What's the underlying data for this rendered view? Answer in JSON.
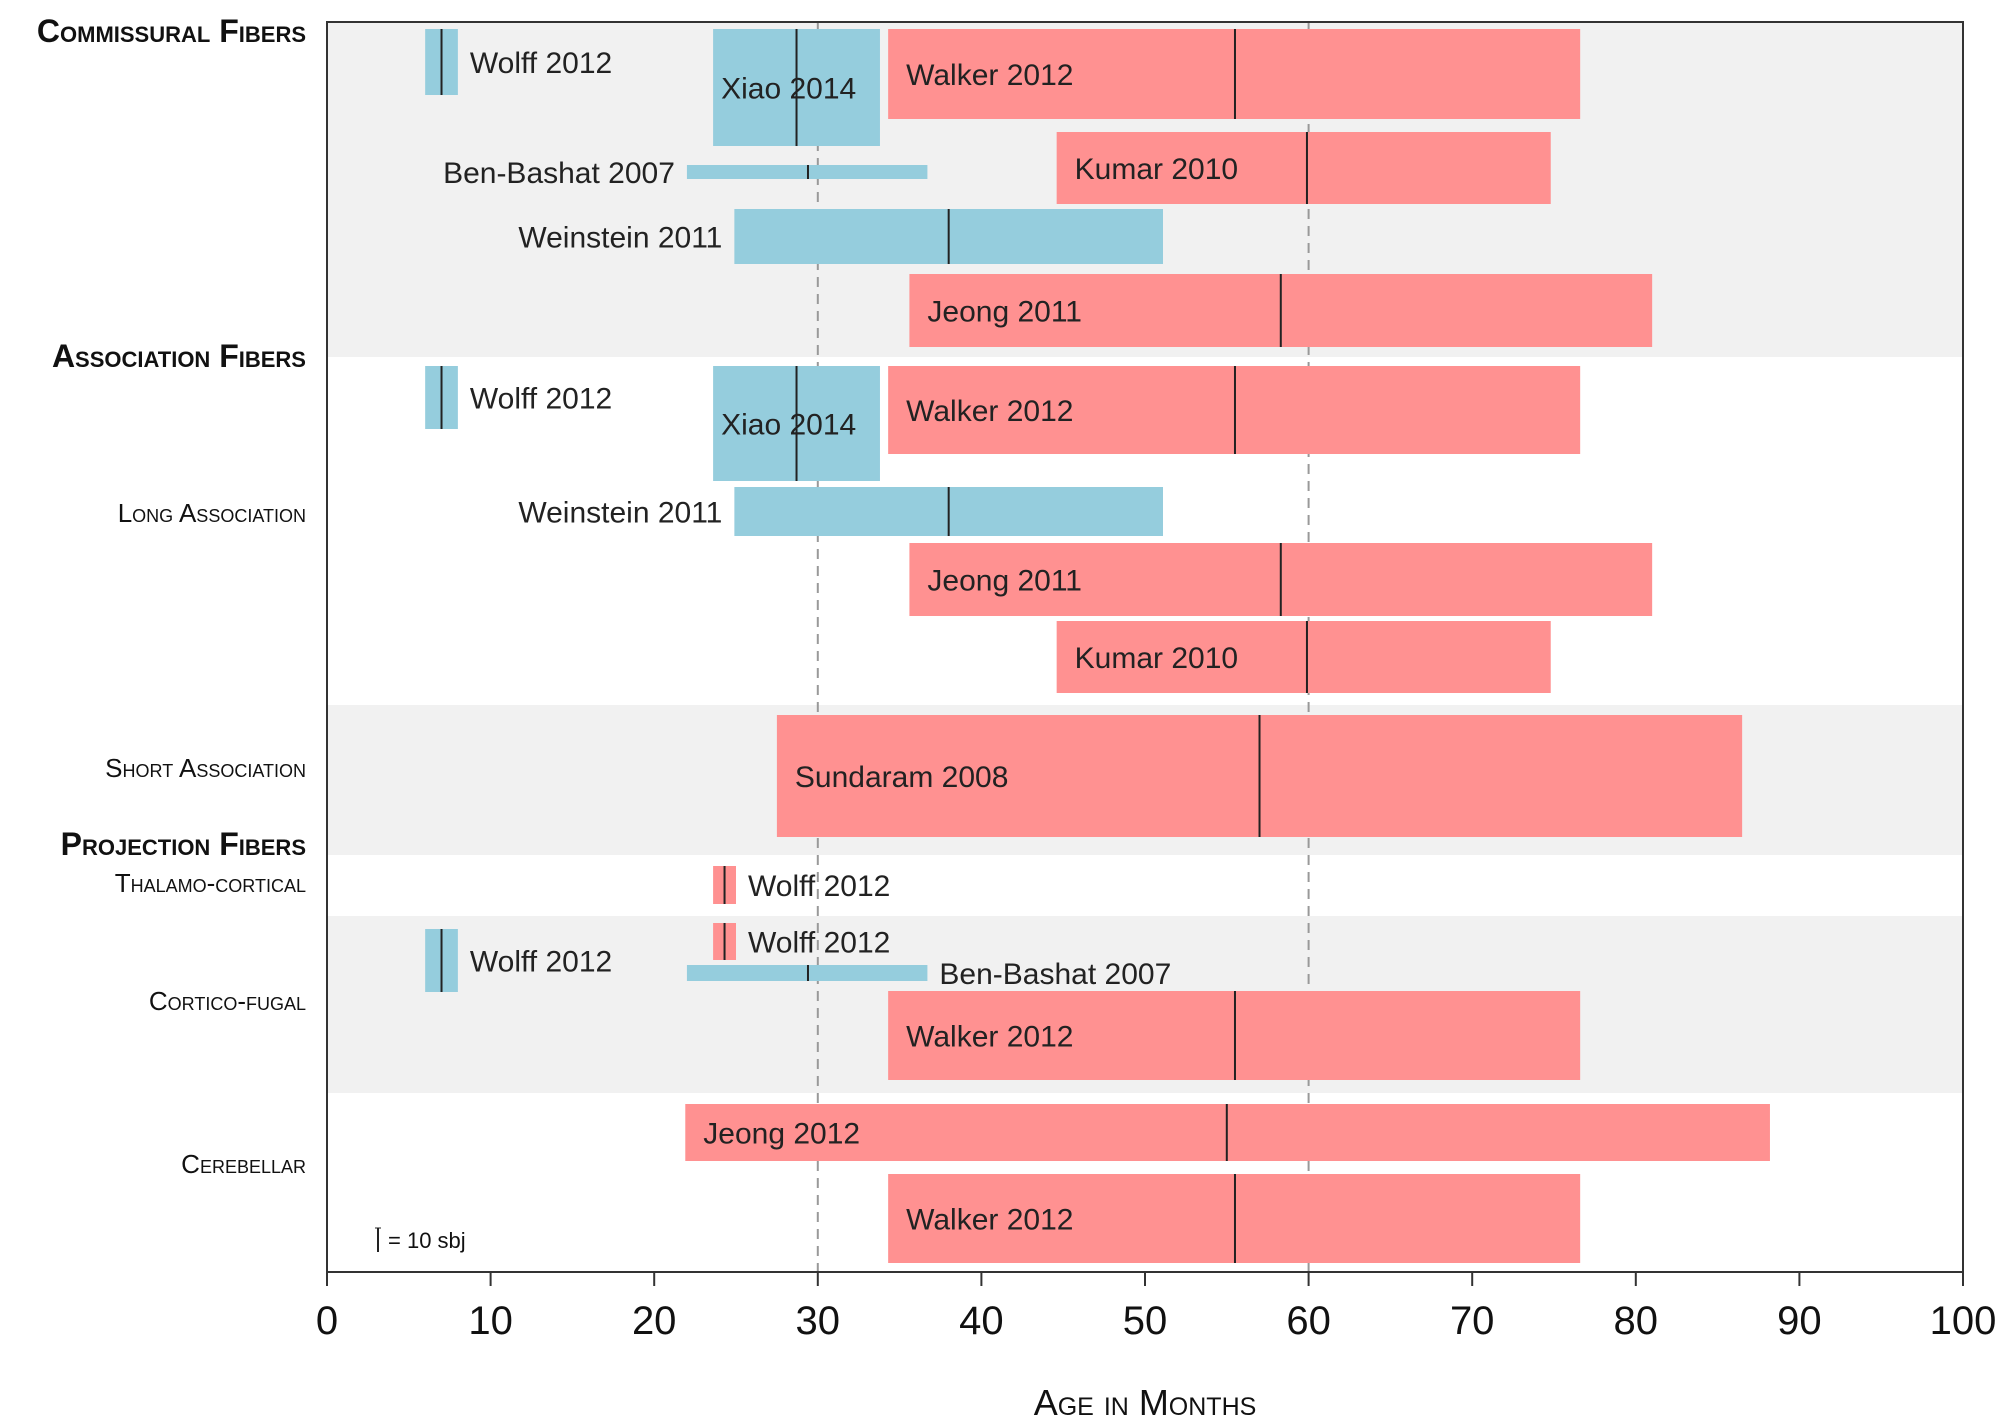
{
  "chart_data": {
    "type": "range-bar",
    "xlabel": "Age in Months",
    "xlim": [
      0,
      100
    ],
    "xticks": [
      0,
      10,
      20,
      30,
      40,
      50,
      60,
      70,
      80,
      90,
      100
    ],
    "reference_lines": [
      30,
      60
    ],
    "colors": {
      "blue": "#95cddd",
      "red": "#ff9191",
      "band": "#f1f1f1",
      "median": "#222222",
      "refline": "#999999"
    },
    "legend": {
      "text": "= 10 sbj",
      "position": "bottom-left"
    },
    "groups": [
      {
        "name": "Commissural Fibers",
        "row": 0
      },
      {
        "name": "Association Fibers",
        "row": 1
      },
      {
        "name": "Projection Fibers",
        "row": 3
      }
    ],
    "rows": [
      {
        "label": "",
        "shaded": true
      },
      {
        "label": "Long Association",
        "shaded": false
      },
      {
        "label": "Short Association",
        "shaded": true
      },
      {
        "label": "Thalamo-cortical",
        "shaded": false
      },
      {
        "label": "Cortico-fugal",
        "shaded": true
      },
      {
        "label": "Cerebellar",
        "shaded": false
      }
    ],
    "bars": [
      {
        "row": 0,
        "study": "Wolff 2012",
        "color": "blue",
        "start": 6,
        "end": 8,
        "median": 7,
        "label_side": "right"
      },
      {
        "row": 0,
        "study": "Xiao 2014",
        "color": "blue",
        "start": 23.6,
        "end": 33.8,
        "median": 28.7,
        "label_side": "inside"
      },
      {
        "row": 0,
        "study": "Walker 2012",
        "color": "red",
        "start": 34.3,
        "end": 76.6,
        "median": 55.5,
        "label_side": "inside"
      },
      {
        "row": 0,
        "study": "Ben-Bashat 2007",
        "color": "blue",
        "start": 22,
        "end": 36.7,
        "median": 29.4,
        "label_side": "left"
      },
      {
        "row": 0,
        "study": "Kumar 2010",
        "color": "red",
        "start": 44.6,
        "end": 74.8,
        "median": 59.9,
        "label_side": "inside"
      },
      {
        "row": 0,
        "study": "Weinstein 2011",
        "color": "blue",
        "start": 24.9,
        "end": 51.1,
        "median": 38,
        "label_side": "left"
      },
      {
        "row": 0,
        "study": "Jeong 2011",
        "color": "red",
        "start": 35.6,
        "end": 81,
        "median": 58.3,
        "label_side": "inside"
      },
      {
        "row": 1,
        "study": "Wolff 2012",
        "color": "blue",
        "start": 6,
        "end": 8,
        "median": 7,
        "label_side": "right"
      },
      {
        "row": 1,
        "study": "Xiao 2014",
        "color": "blue",
        "start": 23.6,
        "end": 33.8,
        "median": 28.7,
        "label_side": "inside"
      },
      {
        "row": 1,
        "study": "Walker 2012",
        "color": "red",
        "start": 34.3,
        "end": 76.6,
        "median": 55.5,
        "label_side": "inside"
      },
      {
        "row": 1,
        "study": "Weinstein 2011",
        "color": "blue",
        "start": 24.9,
        "end": 51.1,
        "median": 38,
        "label_side": "left"
      },
      {
        "row": 1,
        "study": "Jeong 2011",
        "color": "red",
        "start": 35.6,
        "end": 81,
        "median": 58.3,
        "label_side": "inside"
      },
      {
        "row": 1,
        "study": "Kumar 2010",
        "color": "red",
        "start": 44.6,
        "end": 74.8,
        "median": 59.9,
        "label_side": "inside"
      },
      {
        "row": 2,
        "study": "Sundaram 2008",
        "color": "red",
        "start": 27.5,
        "end": 86.5,
        "median": 57,
        "label_side": "inside"
      },
      {
        "row": 3,
        "study": "Wolff 2012",
        "color": "red",
        "start": 23.6,
        "end": 25,
        "median": 24.3,
        "label_side": "right"
      },
      {
        "row": 4,
        "study": "Wolff 2012",
        "color": "red",
        "start": 23.6,
        "end": 25,
        "median": 24.3,
        "label_side": "right"
      },
      {
        "row": 4,
        "study": "Wolff 2012",
        "color": "blue",
        "start": 6,
        "end": 8,
        "median": 7,
        "label_side": "right"
      },
      {
        "row": 4,
        "study": "Ben-Bashat 2007",
        "color": "blue",
        "start": 22,
        "end": 36.7,
        "median": 29.4,
        "label_side": "right"
      },
      {
        "row": 4,
        "study": "Walker 2012",
        "color": "red",
        "start": 34.3,
        "end": 76.6,
        "median": 55.5,
        "label_side": "inside"
      },
      {
        "row": 5,
        "study": "Jeong 2012",
        "color": "red",
        "start": 21.9,
        "end": 88.2,
        "median": 55,
        "label_side": "inside"
      },
      {
        "row": 5,
        "study": "Walker 2012",
        "color": "red",
        "start": 34.3,
        "end": 76.6,
        "median": 55.5,
        "label_side": "inside"
      }
    ]
  }
}
